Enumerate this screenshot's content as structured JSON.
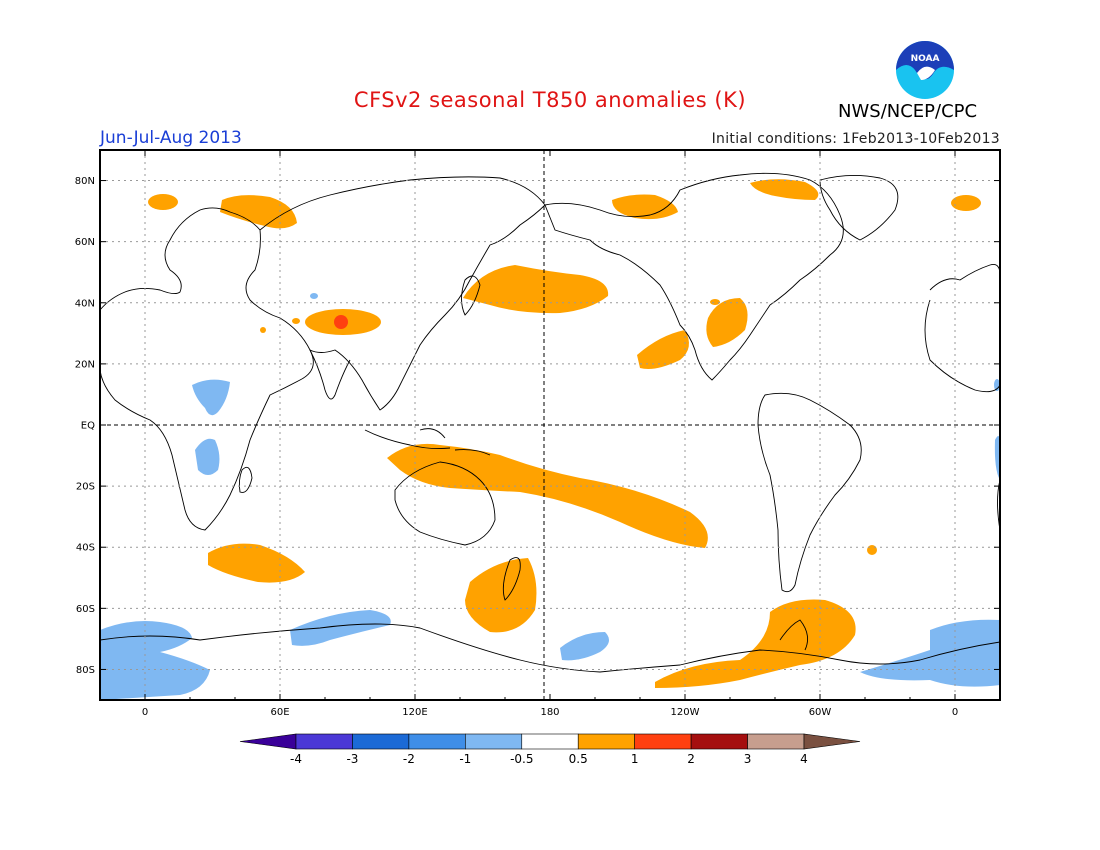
{
  "header": {
    "title": "CFSv2 seasonal T850 anomalies (K)",
    "agency": "NWS/NCEP/CPC",
    "season": "Jun-Jul-Aug 2013",
    "initial_conditions": "Initial conditions: 1Feb2013-10Feb2013",
    "logo_text": "NOAA"
  },
  "axes": {
    "lat_labels": [
      "80N",
      "60N",
      "40N",
      "20N",
      "EQ",
      "20S",
      "40S",
      "60S",
      "80S"
    ],
    "lat_values": [
      80,
      60,
      40,
      20,
      0,
      -20,
      -40,
      -60,
      -80
    ],
    "lon_labels": [
      "0",
      "60E",
      "120E",
      "180",
      "120W",
      "60W",
      "0"
    ],
    "lon_values": [
      0,
      60,
      120,
      180,
      240,
      300,
      360
    ]
  },
  "colorbar": {
    "labels": [
      "-4",
      "-3",
      "-2",
      "-1",
      "-0.5",
      "0.5",
      "1",
      "2",
      "3",
      "4"
    ],
    "colors": [
      "#3a0099",
      "#4b38d6",
      "#1c6ad6",
      "#3f8ee8",
      "#7fb8f2",
      "#ffffff",
      "#ffa200",
      "#ff4010",
      "#a50f0f",
      "#c79e8e",
      "#7a5040"
    ]
  },
  "palette": {
    "warm1": "#ffa200",
    "warm2": "#ff4010",
    "cool1": "#7fb8f2",
    "noaa_blue": "#1c3fb8",
    "noaa_cyan": "#19c3f0"
  }
}
